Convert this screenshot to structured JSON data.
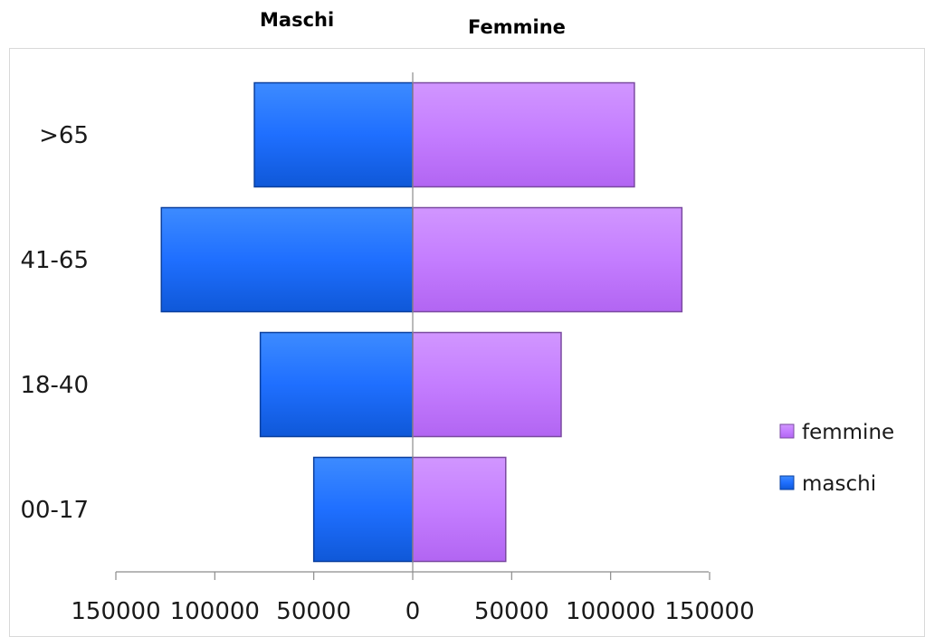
{
  "header": {
    "left_label": "Maschi",
    "right_label": "Femmine"
  },
  "colors": {
    "maschi": "#1f6fff",
    "maschi_edge": "#0a3f9e",
    "femmine": "#c47dff",
    "femmine_edge": "#7a4aa0",
    "axis": "#8c8c8c"
  },
  "chart_data": {
    "type": "bar",
    "orientation": "horizontal",
    "layout": "population-pyramid",
    "categories": [
      ">65",
      "41-65",
      "18-40",
      "00-17"
    ],
    "series": [
      {
        "name": "femmine",
        "values": [
          112000,
          136000,
          75000,
          47000
        ]
      },
      {
        "name": "maschi",
        "values": [
          80000,
          127000,
          77000,
          50000
        ]
      }
    ],
    "x_ticks": [
      "150000",
      "100000",
      "50000",
      "0",
      "50000",
      "100000",
      "150000"
    ],
    "xlim": [
      -150000,
      150000
    ],
    "legend_position": "right",
    "grid": false
  }
}
